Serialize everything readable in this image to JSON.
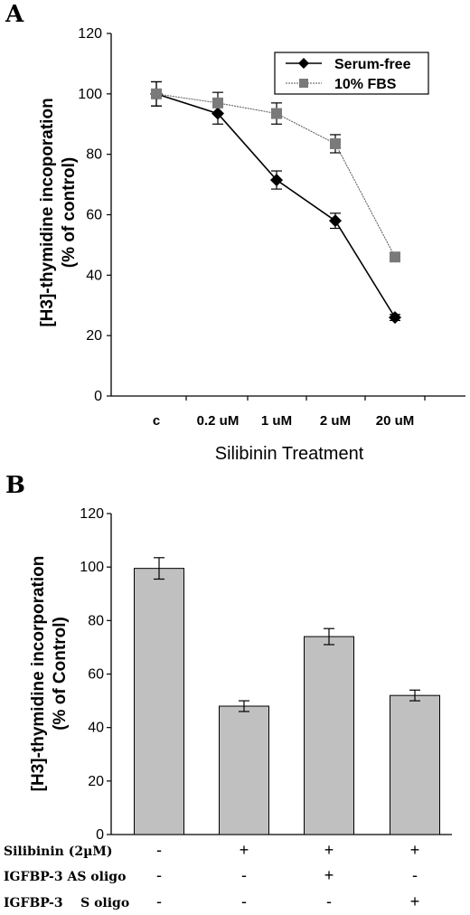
{
  "chart_data": [
    {
      "panel": "A",
      "type": "line",
      "categories": [
        "c",
        "0.2 uM",
        "1 uM",
        "2 uM",
        "20 uM"
      ],
      "series": [
        {
          "name": "Serum-free",
          "values": [
            100,
            93.5,
            71.5,
            58,
            26
          ],
          "errors": [
            4,
            3.5,
            3,
            2.5,
            1
          ],
          "color": "#000000",
          "marker": "diamond"
        },
        {
          "name": "10% FBS",
          "values": [
            100,
            97,
            93.5,
            83.5,
            46
          ],
          "errors": [
            4,
            3.5,
            3.5,
            3,
            1.5
          ],
          "color": "#808080",
          "marker": "square"
        }
      ],
      "ylabel_line1": "[H3]-thymidine incoporation",
      "ylabel_line2": "(% of  control)",
      "xlabel": "Silibinin Treatment",
      "ylim": [
        0,
        120
      ],
      "yticks": [
        "0",
        "20",
        "40",
        "60",
        "80",
        "100",
        "120"
      ],
      "legend_position": "top-right",
      "grid": false
    },
    {
      "panel": "B",
      "type": "bar",
      "categories": [
        "1",
        "2",
        "3",
        "4"
      ],
      "values": [
        99.5,
        48,
        74,
        52
      ],
      "errors": [
        4,
        2,
        3,
        2
      ],
      "bar_color": "#c0c0c0",
      "ylabel_line1": "[H3]-thymidine incorporation",
      "ylabel_line2": "(% of Control)",
      "ylim": [
        0,
        120
      ],
      "yticks": [
        "0",
        "20",
        "40",
        "60",
        "80",
        "100",
        "120"
      ],
      "grid": false,
      "treatment_rows": [
        {
          "label": "Silibinin (2µM)",
          "signs": [
            "-",
            "+",
            "+",
            "+"
          ]
        },
        {
          "label": "IGFBP-3 AS oligo",
          "signs": [
            "-",
            "-",
            "+",
            "-"
          ]
        },
        {
          "label": "IGFBP-3    S oligo",
          "signs": [
            "-",
            "-",
            "-",
            "+"
          ]
        }
      ]
    }
  ],
  "panels": {
    "a_letter": "A",
    "b_letter": "B"
  }
}
